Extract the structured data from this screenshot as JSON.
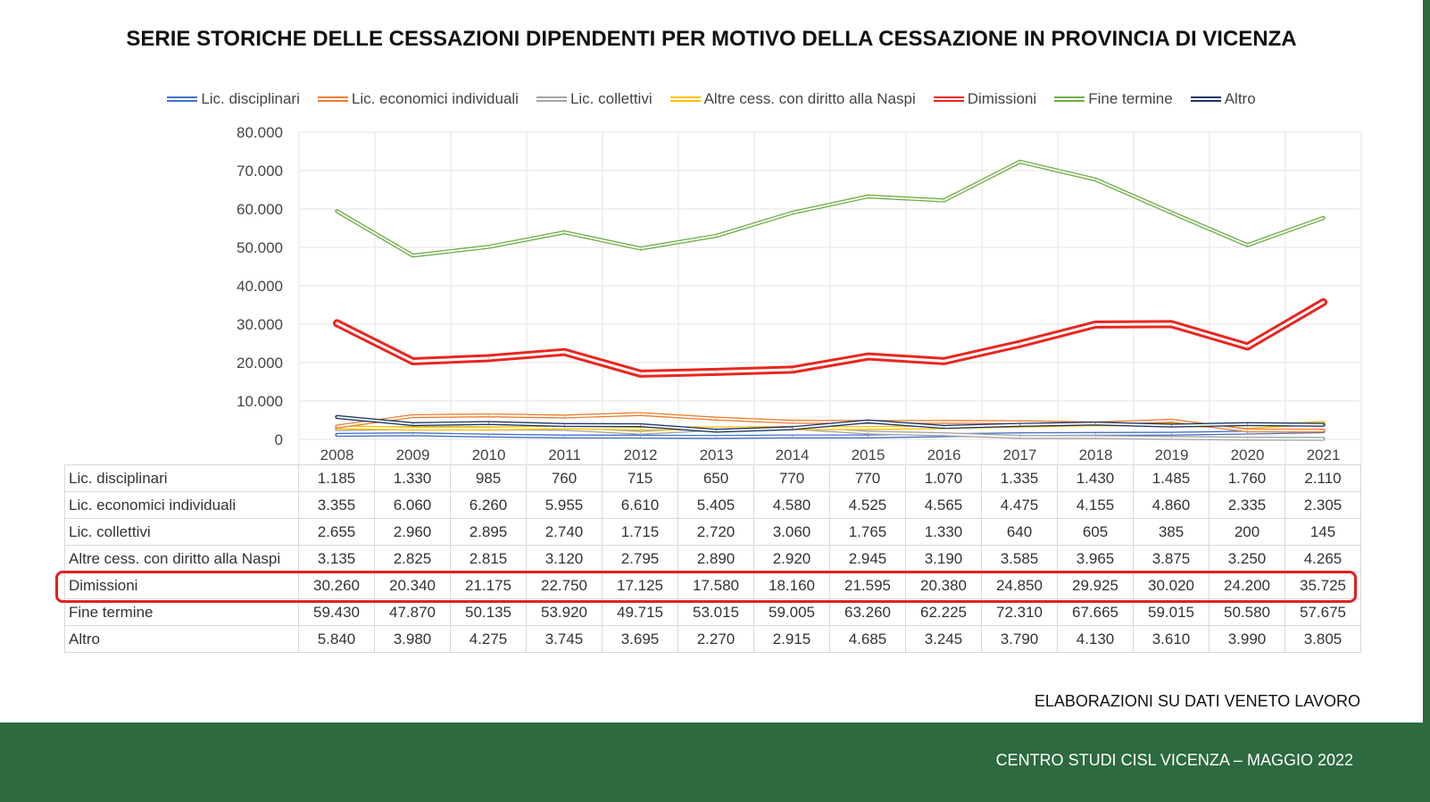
{
  "title": "SERIE STORICHE DELLE CESSAZIONI DIPENDENTI PER MOTIVO DELLA CESSAZIONE IN PROVINCIA DI VICENZA",
  "source": "ELABORAZIONI SU DATI VENETO LAVORO",
  "footer": "CENTRO STUDI CISL VICENZA – MAGGIO 2022",
  "colors": {
    "footer_bg": "#2d6a3f",
    "highlight": "#e02020"
  },
  "chart_data": {
    "type": "line",
    "categories": [
      "2008",
      "2009",
      "2010",
      "2011",
      "2012",
      "2013",
      "2014",
      "2015",
      "2016",
      "2017",
      "2018",
      "2019",
      "2020",
      "2021"
    ],
    "ylim": [
      0,
      80000
    ],
    "yticks": [
      "80.000",
      "70.000",
      "60.000",
      "50.000",
      "40.000",
      "30.000",
      "20.000",
      "10.000",
      "0"
    ],
    "grid": true,
    "legend_position": "top",
    "series": [
      {
        "name": "Lic. disciplinari",
        "color": "#4472c4",
        "values": [
          1185,
          1330,
          985,
          760,
          715,
          650,
          770,
          770,
          1070,
          1335,
          1430,
          1485,
          1760,
          2110
        ],
        "labels": [
          "1.185",
          "1.330",
          "985",
          "760",
          "715",
          "650",
          "770",
          "770",
          "1.070",
          "1.335",
          "1.430",
          "1.485",
          "1.760",
          "2.110"
        ]
      },
      {
        "name": "Lic. economici individuali",
        "color": "#ed7d31",
        "values": [
          3355,
          6060,
          6260,
          5955,
          6610,
          5405,
          4580,
          4525,
          4565,
          4475,
          4155,
          4860,
          2335,
          2305
        ],
        "labels": [
          "3.355",
          "6.060",
          "6.260",
          "5.955",
          "6.610",
          "5.405",
          "4.580",
          "4.525",
          "4.565",
          "4.475",
          "4.155",
          "4.860",
          "2.335",
          "2.305"
        ]
      },
      {
        "name": "Lic. collettivi",
        "color": "#a5a5a5",
        "values": [
          2655,
          2960,
          2895,
          2740,
          1715,
          2720,
          3060,
          1765,
          1330,
          640,
          605,
          385,
          200,
          145
        ],
        "labels": [
          "2.655",
          "2.960",
          "2.895",
          "2.740",
          "1.715",
          "2.720",
          "3.060",
          "1.765",
          "1.330",
          "640",
          "605",
          "385",
          "200",
          "145"
        ]
      },
      {
        "name": "Altre cess. con diritto alla Naspi",
        "color": "#ffc000",
        "values": [
          3135,
          2825,
          2815,
          3120,
          2795,
          2890,
          2920,
          2945,
          3190,
          3585,
          3965,
          3875,
          3250,
          4265
        ],
        "labels": [
          "3.135",
          "2.825",
          "2.815",
          "3.120",
          "2.795",
          "2.890",
          "2.920",
          "2.945",
          "3.190",
          "3.585",
          "3.965",
          "3.875",
          "3.250",
          "4.265"
        ]
      },
      {
        "name": "Dimissioni",
        "color": "#e8261f",
        "values": [
          30260,
          20340,
          21175,
          22750,
          17125,
          17580,
          18160,
          21595,
          20380,
          24850,
          29925,
          30020,
          24200,
          35725
        ],
        "labels": [
          "30.260",
          "20.340",
          "21.175",
          "22.750",
          "17.125",
          "17.580",
          "18.160",
          "21.595",
          "20.380",
          "24.850",
          "29.925",
          "30.020",
          "24.200",
          "35.725"
        ]
      },
      {
        "name": "Fine termine",
        "color": "#70ad47",
        "values": [
          59430,
          47870,
          50135,
          53920,
          49715,
          53015,
          59005,
          63260,
          62225,
          72310,
          67665,
          59015,
          50580,
          57675
        ],
        "labels": [
          "59.430",
          "47.870",
          "50.135",
          "53.920",
          "49.715",
          "53.015",
          "59.005",
          "63.260",
          "62.225",
          "72.310",
          "67.665",
          "59.015",
          "50.580",
          "57.675"
        ]
      },
      {
        "name": "Altro",
        "color": "#203864",
        "values": [
          5840,
          3980,
          4275,
          3745,
          3695,
          2270,
          2915,
          4685,
          3245,
          3790,
          4130,
          3610,
          3990,
          3805
        ],
        "labels": [
          "5.840",
          "3.980",
          "4.275",
          "3.745",
          "3.695",
          "2.270",
          "2.915",
          "4.685",
          "3.245",
          "3.790",
          "4.130",
          "3.610",
          "3.990",
          "3.805"
        ]
      }
    ]
  }
}
